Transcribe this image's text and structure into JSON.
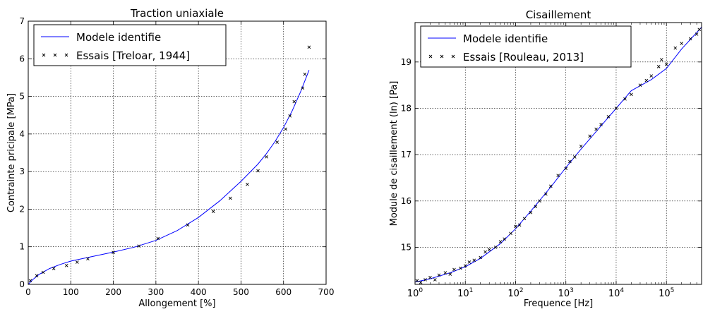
{
  "chart_data": [
    {
      "type": "line",
      "title": "Traction uniaxiale",
      "xlabel": "Allongement [%]",
      "ylabel": "Contrainte pricipale [MPa]",
      "xlim": [
        0,
        700
      ],
      "ylim": [
        0,
        7
      ],
      "x_ticks": [
        0,
        100,
        200,
        300,
        400,
        500,
        600,
        700
      ],
      "y_ticks": [
        0,
        1,
        2,
        3,
        4,
        5,
        6,
        7
      ],
      "grid": true,
      "legend_position": "top-left",
      "series": [
        {
          "name": "Modele identifie",
          "style": "line",
          "color": "#0000ff",
          "x": [
            0,
            10,
            25,
            50,
            75,
            100,
            150,
            200,
            250,
            300,
            350,
            400,
            450,
            500,
            540,
            560,
            580,
            600,
            620,
            640,
            660
          ],
          "y": [
            0,
            0.12,
            0.26,
            0.42,
            0.53,
            0.62,
            0.74,
            0.86,
            0.99,
            1.17,
            1.43,
            1.78,
            2.22,
            2.74,
            3.2,
            3.48,
            3.8,
            4.17,
            4.61,
            5.12,
            5.7
          ]
        },
        {
          "name": "Essais [Treloar, 1944]",
          "style": "marker-x",
          "color": "#000000",
          "x": [
            5,
            20,
            35,
            60,
            90,
            115,
            140,
            200,
            260,
            305,
            375,
            435,
            475,
            515,
            540,
            560,
            585,
            605,
            615,
            625,
            645,
            650,
            660
          ],
          "y": [
            0.1,
            0.23,
            0.32,
            0.42,
            0.5,
            0.59,
            0.68,
            0.85,
            1.02,
            1.22,
            1.58,
            1.94,
            2.29,
            2.66,
            3.02,
            3.39,
            3.78,
            4.13,
            4.48,
            4.86,
            5.22,
            5.59,
            6.31
          ]
        }
      ]
    },
    {
      "type": "line",
      "title": "Cisaillement",
      "xlabel": "Frequence [Hz]",
      "ylabel": "Module de cisaillement (ln) [Pa]",
      "x_scale": "log",
      "xlim": [
        1,
        500000
      ],
      "ylim": [
        14.2,
        19.85
      ],
      "x_ticks": [
        "10",
        "10",
        "10",
        "10",
        "10",
        "10"
      ],
      "x_tick_exponents": [
        "0",
        "1",
        "2",
        "3",
        "4",
        "5"
      ],
      "y_ticks": [
        15,
        16,
        17,
        18,
        19
      ],
      "grid": true,
      "legend_position": "top-left",
      "series": [
        {
          "name": "Modele identifie",
          "style": "line",
          "color": "#0000ff",
          "x": [
            1,
            2,
            5,
            10,
            20,
            50,
            100,
            200,
            500,
            1000,
            2000,
            5000,
            10000,
            20000,
            50000,
            100000,
            200000,
            500000
          ],
          "y": [
            14.25,
            14.32,
            14.45,
            14.58,
            14.76,
            15.08,
            15.4,
            15.78,
            16.3,
            16.72,
            17.12,
            17.62,
            18.0,
            18.38,
            18.62,
            18.86,
            19.28,
            19.75
          ]
        },
        {
          "name": "Essais [Rouleau, 2013]",
          "style": "marker-x",
          "color": "#000000",
          "x": [
            1.1,
            1.3,
            1.6,
            2,
            2.5,
            3,
            4,
            5,
            6,
            8,
            10,
            12,
            15,
            20,
            25,
            30,
            40,
            50,
            60,
            80,
            100,
            120,
            150,
            200,
            250,
            300,
            400,
            500,
            700,
            1000,
            1200,
            1500,
            2000,
            3000,
            4000,
            5000,
            7000,
            10000,
            15000,
            20000,
            30000,
            40000,
            50000,
            70000,
            80000,
            100000,
            150000,
            200000,
            300000,
            400000,
            450000
          ],
          "y": [
            14.28,
            14.24,
            14.3,
            14.35,
            14.3,
            14.4,
            14.45,
            14.42,
            14.52,
            14.55,
            14.6,
            14.68,
            14.72,
            14.78,
            14.9,
            14.95,
            15.0,
            15.12,
            15.18,
            15.3,
            15.45,
            15.48,
            15.62,
            15.75,
            15.88,
            16.0,
            16.15,
            16.32,
            16.55,
            16.7,
            16.85,
            16.95,
            17.18,
            17.4,
            17.55,
            17.65,
            17.82,
            18.0,
            18.2,
            18.3,
            18.5,
            18.6,
            18.7,
            18.9,
            19.05,
            18.95,
            19.3,
            19.4,
            19.5,
            19.6,
            19.7
          ]
        }
      ]
    }
  ]
}
